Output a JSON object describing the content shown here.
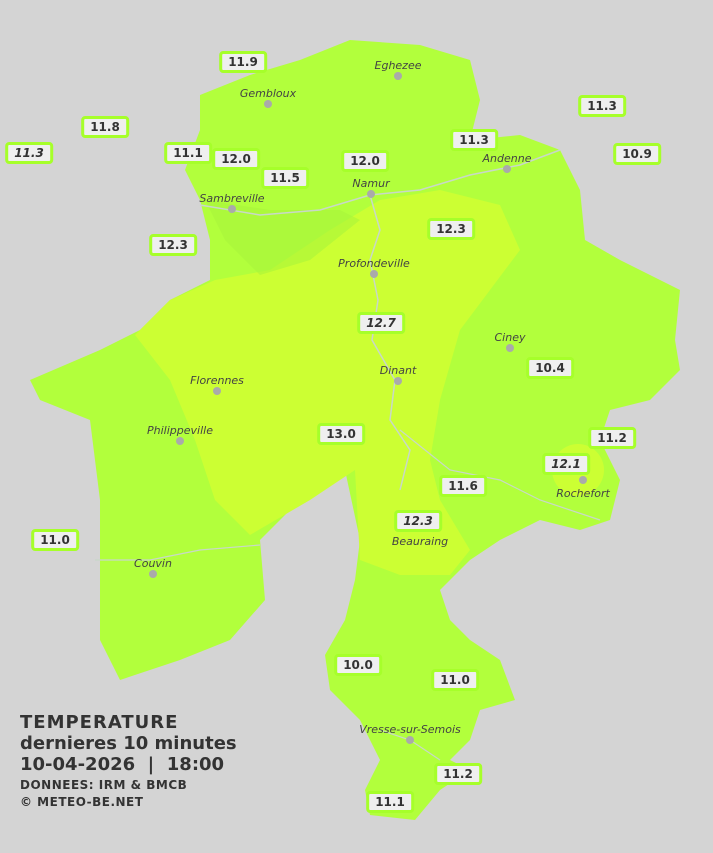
{
  "colors": {
    "background": "#d4d4d4",
    "zone_11": "#b2ff3c",
    "zone_12": "#ccff33",
    "label_border": "#a6ff2a"
  },
  "towns": [
    "Eghezee",
    "Gembloux",
    "Andenne",
    "Namur",
    "Sambreville",
    "Profondeville",
    "Ciney",
    "Dinant",
    "Florennes",
    "Philippeville",
    "Rochefort",
    "Beauraing",
    "Couvin",
    "Vresse-sur-Semois"
  ],
  "stations": [
    {
      "value": "11.9"
    },
    {
      "value": "11.8"
    },
    {
      "value": "11.3",
      "italic": true
    },
    {
      "value": "11.1"
    },
    {
      "value": "12.0"
    },
    {
      "value": "11.5"
    },
    {
      "value": "12.0"
    },
    {
      "value": "11.3"
    },
    {
      "value": "11.3"
    },
    {
      "value": "10.9"
    },
    {
      "value": "12.3"
    },
    {
      "value": "12.3"
    },
    {
      "value": "12.7",
      "italic": true
    },
    {
      "value": "10.4"
    },
    {
      "value": "13.0"
    },
    {
      "value": "11.2"
    },
    {
      "value": "12.1",
      "italic": true
    },
    {
      "value": "11.6"
    },
    {
      "value": "12.3",
      "italic": true
    },
    {
      "value": "11.0"
    },
    {
      "value": "10.0"
    },
    {
      "value": "11.0"
    },
    {
      "value": "11.2"
    },
    {
      "value": "11.1"
    }
  ],
  "legend": {
    "title": "TEMPERATURE",
    "subtitle": "dernieres 10 minutes",
    "datetime": "10-04-2026  |  18:00",
    "source": "DONNEES: IRM & BMCB",
    "copyright": "© METEO-BE.NET"
  }
}
